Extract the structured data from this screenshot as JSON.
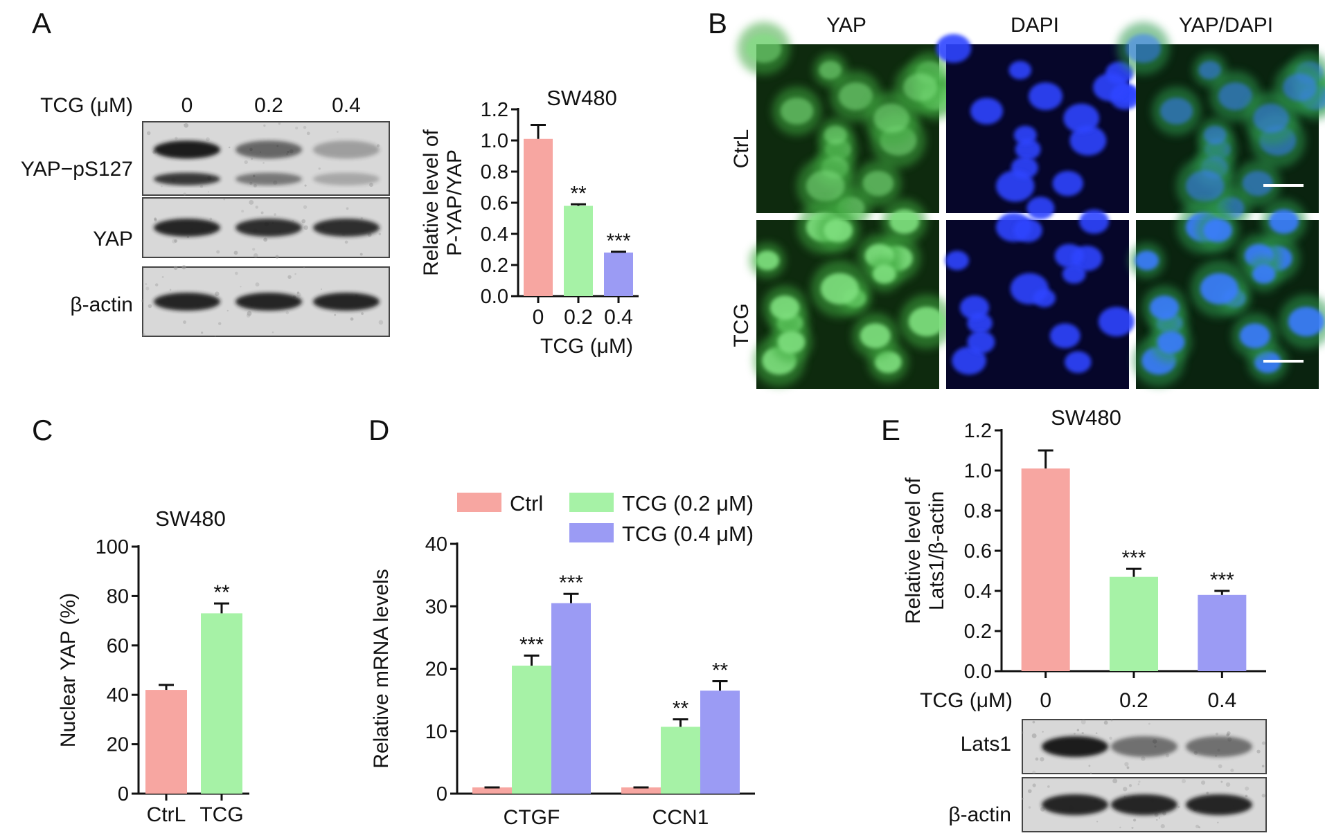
{
  "panel_labels": {
    "a": "A",
    "b": "B",
    "c": "C",
    "d": "D",
    "e": "E"
  },
  "colors": {
    "ctrl": "#f7a6a1",
    "low": "#a6f2a6",
    "high": "#9b9bf4",
    "ink": "#111111",
    "blot_bg": "#d8d8d8",
    "band": "#1a1a1a"
  },
  "panel_a": {
    "blot": {
      "treatment_label": "TCG (μM)",
      "doses": [
        "0",
        "0.2",
        "0.4"
      ],
      "rows": [
        {
          "label": "YAP−pS127",
          "intensity": [
            1.0,
            0.6,
            0.3
          ]
        },
        {
          "label": "YAP",
          "intensity": [
            0.95,
            0.9,
            0.9
          ]
        },
        {
          "label": "β-actin",
          "intensity": [
            0.95,
            0.95,
            0.95
          ]
        }
      ]
    }
  },
  "panel_b": {
    "columns": [
      "YAP",
      "DAPI",
      "YAP/DAPI"
    ],
    "rows": [
      "CtrL",
      "TCG"
    ]
  },
  "panel_e_blot": {
    "rows": [
      {
        "label": "Lats1",
        "intensity": [
          1.0,
          0.55,
          0.55
        ]
      },
      {
        "label": "β-actin",
        "intensity": [
          0.95,
          0.95,
          0.95
        ]
      }
    ]
  },
  "chart_data": [
    {
      "id": "a",
      "type": "bar",
      "title": "SW480",
      "ylabel": "Relative level of P-YAP/YAP",
      "xlabel": "TCG (μM)",
      "categories": [
        "0",
        "0.2",
        "0.4"
      ],
      "values": [
        1.01,
        0.58,
        0.28
      ],
      "errors": [
        0.09,
        0.01,
        0.005
      ],
      "significance": [
        "",
        "**",
        "***"
      ],
      "ylim": [
        0,
        1.2
      ],
      "yticks": [
        "0.0",
        "0.2",
        "0.4",
        "0.6",
        "0.8",
        "1.0",
        "1.2"
      ],
      "grid": false
    },
    {
      "id": "c",
      "type": "bar",
      "title": "SW480",
      "ylabel": "Nuclear YAP (%)",
      "xlabel": "",
      "categories": [
        "CtrL",
        "TCG"
      ],
      "values": [
        42,
        73
      ],
      "errors": [
        2,
        4
      ],
      "significance": [
        "",
        "**"
      ],
      "ylim": [
        0,
        100
      ],
      "yticks": [
        "0",
        "20",
        "40",
        "60",
        "80",
        "100"
      ],
      "grid": false
    },
    {
      "id": "d",
      "type": "bar",
      "title": "",
      "ylabel": "Relative mRNA levels",
      "xlabel": "",
      "categories": [
        "CTGF",
        "CCN1"
      ],
      "series": [
        {
          "name": "Ctrl",
          "values": [
            1.0,
            1.0
          ],
          "errors": [
            0,
            0
          ],
          "significance": [
            "",
            ""
          ]
        },
        {
          "name": "TCG (0.2 μM)",
          "values": [
            20.5,
            10.7
          ],
          "errors": [
            1.6,
            1.2
          ],
          "significance": [
            "***",
            "**"
          ]
        },
        {
          "name": "TCG (0.4 μM)",
          "values": [
            30.5,
            16.5
          ],
          "errors": [
            1.5,
            1.5
          ],
          "significance": [
            "***",
            "**"
          ]
        }
      ],
      "ylim": [
        0,
        40
      ],
      "yticks": [
        "0",
        "10",
        "20",
        "30",
        "40"
      ],
      "legend": "top",
      "grid": false
    },
    {
      "id": "e",
      "type": "bar",
      "title": "SW480",
      "ylabel": "Relative level of Lats1/β-actin",
      "xlabel": "TCG (μM)",
      "categories": [
        "0",
        "0.2",
        "0.4"
      ],
      "values": [
        1.01,
        0.47,
        0.38
      ],
      "errors": [
        0.09,
        0.04,
        0.02
      ],
      "significance": [
        "",
        "***",
        "***"
      ],
      "ylim": [
        0,
        1.2
      ],
      "yticks": [
        "0.0",
        "0.2",
        "0.4",
        "0.6",
        "0.8",
        "1.0",
        "1.2"
      ],
      "grid": false
    }
  ]
}
